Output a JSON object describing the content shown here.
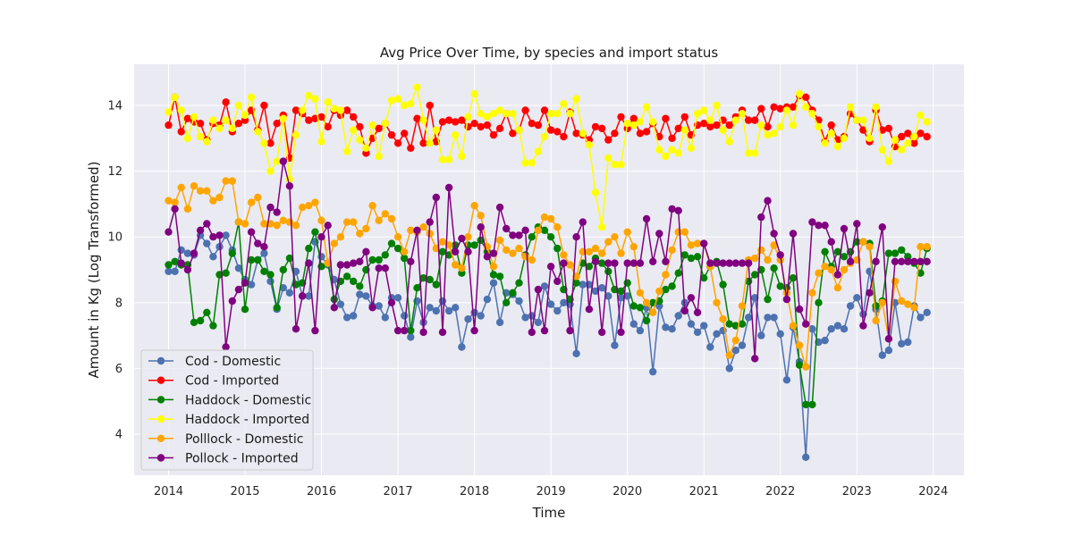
{
  "chart_data": {
    "type": "line",
    "title": "Avg Price Over Time, by species and import status",
    "xlabel": "Time",
    "ylabel": "Amount in Kg (Log Transformed)",
    "xlim": [
      2013.55,
      2024.4
    ],
    "ylim": [
      2.75,
      15.25
    ],
    "xticks": [
      "2014",
      "2015",
      "2016",
      "2017",
      "2018",
      "2019",
      "2020",
      "2021",
      "2022",
      "2023",
      "2024"
    ],
    "yticks": [
      "4",
      "6",
      "8",
      "10",
      "12",
      "14"
    ],
    "grid": true,
    "legend_position": "lower-left",
    "x_start": "2014-01",
    "x_step": "monthly",
    "series": [
      {
        "name": "Cod - Domestic",
        "color": "#4c72b0",
        "values": [
          8.95,
          8.95,
          9.6,
          9.5,
          9.45,
          10.05,
          9.8,
          9.4,
          9.7,
          10.05,
          9.6,
          9.05,
          8.7,
          8.55,
          9.3,
          9.5,
          8.65,
          7.8,
          8.45,
          8.3,
          8.95,
          8.2,
          8.2,
          9.85,
          9.4,
          9.15,
          8.7,
          7.95,
          7.55,
          7.6,
          8.25,
          8.2,
          7.9,
          7.9,
          7.55,
          8.15,
          8.15,
          7.6,
          6.95,
          8.05,
          7.4,
          7.85,
          7.75,
          8.05,
          7.75,
          7.85,
          6.65,
          7.5,
          7.7,
          7.6,
          8.1,
          8.6,
          7.4,
          8.3,
          8.25,
          8.05,
          7.55,
          7.6,
          7.4,
          8.5,
          7.95,
          7.75,
          8.0,
          7.95,
          6.45,
          8.55,
          8.55,
          8.35,
          8.45,
          8.2,
          6.7,
          8.15,
          8.2,
          7.35,
          7.15,
          7.85,
          5.9,
          7.9,
          7.25,
          7.2,
          7.6,
          8.0,
          7.35,
          7.1,
          7.3,
          6.65,
          7.05,
          7.15,
          6.0,
          6.55,
          6.7,
          7.55,
          8.15,
          7.0,
          7.55,
          7.55,
          7.05,
          5.65,
          7.25,
          6.2,
          3.3,
          7.2,
          6.8,
          6.85,
          7.2,
          7.3,
          7.2,
          7.9,
          8.15,
          7.65,
          8.95,
          7.8,
          6.4,
          6.55,
          8.0,
          6.75,
          6.8,
          7.9,
          7.55,
          7.7
        ]
      },
      {
        "name": "Cod - Imported",
        "color": "#ff0000",
        "values": [
          13.4,
          14.25,
          13.2,
          13.6,
          13.5,
          13.45,
          12.95,
          13.45,
          13.4,
          14.1,
          13.2,
          13.45,
          13.55,
          13.85,
          13.25,
          14.0,
          12.85,
          13.45,
          13.7,
          12.4,
          13.85,
          13.75,
          13.55,
          13.6,
          13.65,
          13.35,
          13.85,
          13.7,
          13.85,
          13.65,
          13.35,
          12.55,
          13.0,
          13.3,
          13.45,
          13.1,
          12.85,
          13.15,
          12.7,
          13.6,
          12.85,
          14.0,
          12.9,
          13.5,
          13.55,
          13.5,
          13.55,
          13.35,
          13.45,
          13.35,
          13.4,
          13.1,
          13.3,
          13.75,
          13.15,
          13.25,
          13.85,
          13.45,
          13.4,
          13.85,
          13.25,
          13.2,
          13.05,
          13.8,
          13.15,
          13.1,
          12.95,
          13.35,
          13.3,
          12.95,
          13.15,
          13.65,
          13.3,
          13.6,
          13.15,
          13.2,
          13.45,
          13.05,
          13.6,
          13.0,
          13.3,
          13.65,
          13.1,
          13.4,
          13.45,
          13.35,
          13.4,
          13.55,
          13.4,
          13.65,
          13.85,
          13.55,
          13.55,
          13.9,
          13.35,
          13.95,
          13.9,
          13.95,
          13.95,
          14.3,
          14.25,
          13.85,
          13.55,
          12.9,
          13.4,
          12.95,
          13.05,
          13.75,
          13.55,
          13.25,
          12.9,
          13.85,
          13.25,
          13.3,
          12.75,
          13.05,
          13.15,
          12.85,
          13.15,
          13.05
        ]
      },
      {
        "name": "Haddock - Domestic",
        "color": "#008000",
        "values": [
          9.15,
          9.25,
          9.15,
          9.15,
          7.4,
          7.45,
          7.7,
          7.3,
          8.85,
          8.9,
          9.5,
          10.45,
          7.8,
          9.3,
          9.3,
          8.95,
          8.85,
          7.85,
          9.0,
          9.35,
          8.55,
          8.6,
          9.65,
          10.15,
          9.1,
          9.2,
          8.1,
          8.65,
          8.8,
          8.65,
          8.5,
          9.0,
          9.3,
          9.3,
          9.45,
          9.8,
          9.65,
          9.35,
          7.15,
          8.45,
          8.75,
          8.7,
          8.55,
          9.55,
          9.45,
          9.75,
          8.9,
          9.75,
          9.75,
          9.9,
          9.55,
          8.85,
          8.8,
          8.0,
          8.3,
          8.6,
          9.45,
          10.0,
          10.3,
          10.2,
          10.0,
          9.65,
          8.4,
          8.1,
          8.6,
          9.2,
          9.1,
          9.35,
          9.2,
          8.95,
          8.4,
          8.35,
          8.6,
          7.9,
          7.85,
          7.45,
          8.0,
          8.05,
          8.4,
          8.5,
          8.9,
          9.45,
          9.35,
          9.4,
          8.75,
          9.1,
          9.25,
          8.55,
          7.35,
          7.3,
          7.35,
          8.65,
          8.85,
          9.0,
          8.1,
          9.05,
          8.5,
          8.45,
          8.75,
          6.1,
          4.9,
          4.9,
          8.0,
          9.55,
          9.1,
          9.55,
          9.4,
          9.55,
          9.85,
          9.85,
          9.8,
          7.9,
          8.05,
          9.5,
          9.5,
          9.6,
          9.4,
          9.2,
          8.9,
          9.65
        ]
      },
      {
        "name": "Haddock - Imported",
        "color": "#ffff00",
        "values": [
          13.8,
          14.25,
          13.85,
          13.0,
          13.65,
          13.05,
          12.9,
          13.55,
          13.3,
          13.55,
          13.3,
          14.0,
          13.7,
          14.25,
          13.2,
          12.85,
          12.0,
          12.3,
          13.6,
          11.75,
          13.1,
          13.85,
          14.3,
          14.2,
          12.9,
          14.1,
          13.9,
          13.85,
          12.6,
          13.25,
          12.95,
          12.7,
          13.4,
          12.45,
          13.45,
          14.15,
          14.2,
          14.0,
          14.05,
          14.55,
          13.55,
          12.85,
          13.25,
          12.35,
          12.35,
          13.1,
          12.45,
          13.65,
          14.35,
          13.75,
          13.65,
          13.75,
          13.85,
          13.75,
          13.75,
          13.25,
          12.25,
          12.25,
          12.6,
          13.05,
          13.75,
          13.75,
          14.05,
          13.75,
          14.2,
          13.15,
          12.8,
          11.35,
          10.3,
          12.4,
          12.2,
          12.2,
          13.45,
          13.4,
          13.5,
          13.95,
          13.5,
          12.65,
          12.45,
          12.65,
          12.55,
          13.25,
          12.7,
          13.75,
          13.85,
          13.55,
          14.0,
          13.25,
          12.9,
          13.55,
          13.75,
          12.55,
          12.55,
          13.4,
          13.1,
          13.15,
          13.35,
          13.85,
          13.4,
          14.35,
          13.95,
          13.75,
          13.35,
          12.85,
          13.15,
          12.75,
          13.0,
          13.95,
          13.55,
          13.55,
          13.0,
          13.95,
          12.65,
          12.3,
          12.95,
          12.65,
          12.85,
          13.05,
          13.7,
          13.5
        ]
      },
      {
        "name": "Polllock - Domestic",
        "color": "#ffa500",
        "values": [
          11.1,
          11.05,
          11.5,
          10.85,
          11.55,
          11.4,
          11.4,
          11.1,
          11.2,
          11.7,
          11.7,
          10.45,
          10.4,
          11.05,
          11.2,
          10.4,
          10.4,
          10.35,
          10.5,
          10.45,
          10.35,
          10.9,
          10.95,
          11.05,
          10.5,
          9.2,
          9.8,
          10.0,
          10.45,
          10.45,
          10.1,
          10.25,
          10.95,
          10.5,
          10.7,
          10.55,
          10.0,
          9.55,
          10.2,
          10.15,
          10.3,
          10.1,
          9.65,
          9.85,
          9.75,
          9.15,
          9.05,
          10.0,
          10.95,
          10.65,
          9.7,
          9.1,
          9.9,
          9.6,
          9.5,
          9.65,
          9.4,
          9.3,
          10.2,
          10.6,
          10.55,
          10.3,
          9.45,
          9.15,
          8.8,
          9.55,
          9.55,
          9.65,
          9.5,
          9.85,
          10.0,
          9.5,
          10.15,
          9.7,
          8.3,
          8.0,
          7.7,
          8.35,
          8.85,
          9.6,
          10.15,
          10.15,
          9.75,
          9.8,
          9.8,
          9.1,
          8.0,
          7.5,
          6.4,
          6.85,
          7.9,
          9.3,
          9.35,
          9.6,
          9.3,
          9.75,
          9.3,
          8.3,
          7.3,
          6.7,
          6.05,
          8.3,
          8.9,
          9.1,
          9.0,
          8.45,
          9.0,
          9.2,
          9.3,
          9.85,
          9.7,
          7.45,
          8.0,
          6.9,
          8.65,
          8.05,
          7.95,
          7.85,
          9.7,
          9.7
        ]
      },
      {
        "name": "Pollock - Imported",
        "color": "#800080",
        "values": [
          10.15,
          10.85,
          9.2,
          9.0,
          9.5,
          10.2,
          10.4,
          10.0,
          10.05,
          6.65,
          8.05,
          8.4,
          8.6,
          10.15,
          9.8,
          9.7,
          10.9,
          10.75,
          12.3,
          11.55,
          7.2,
          8.2,
          9.2,
          7.15,
          10.0,
          10.35,
          7.85,
          9.15,
          9.15,
          9.2,
          9.25,
          9.55,
          7.85,
          9.05,
          9.05,
          8.0,
          7.15,
          7.15,
          9.25,
          10.2,
          7.1,
          10.45,
          11.2,
          7.1,
          11.5,
          9.55,
          9.95,
          9.55,
          7.15,
          10.3,
          9.4,
          9.5,
          10.9,
          10.25,
          10.05,
          10.05,
          10.2,
          7.1,
          8.4,
          7.15,
          9.1,
          8.65,
          9.2,
          7.15,
          10.0,
          10.45,
          7.8,
          9.25,
          7.1,
          9.2,
          9.2,
          7.1,
          9.2,
          9.2,
          9.2,
          10.55,
          9.25,
          10.1,
          9.25,
          10.85,
          10.8,
          7.75,
          8.15,
          7.7,
          9.8,
          9.2,
          9.2,
          9.2,
          9.2,
          9.2,
          9.2,
          9.2,
          6.3,
          10.6,
          11.1,
          10.1,
          9.45,
          8.1,
          10.1,
          7.8,
          7.35,
          10.45,
          10.35,
          10.35,
          9.85,
          8.85,
          10.25,
          9.25,
          10.4,
          7.3,
          8.3,
          9.25,
          10.3,
          6.9,
          9.25,
          9.25,
          9.25,
          9.25,
          9.25,
          9.25
        ]
      }
    ]
  }
}
